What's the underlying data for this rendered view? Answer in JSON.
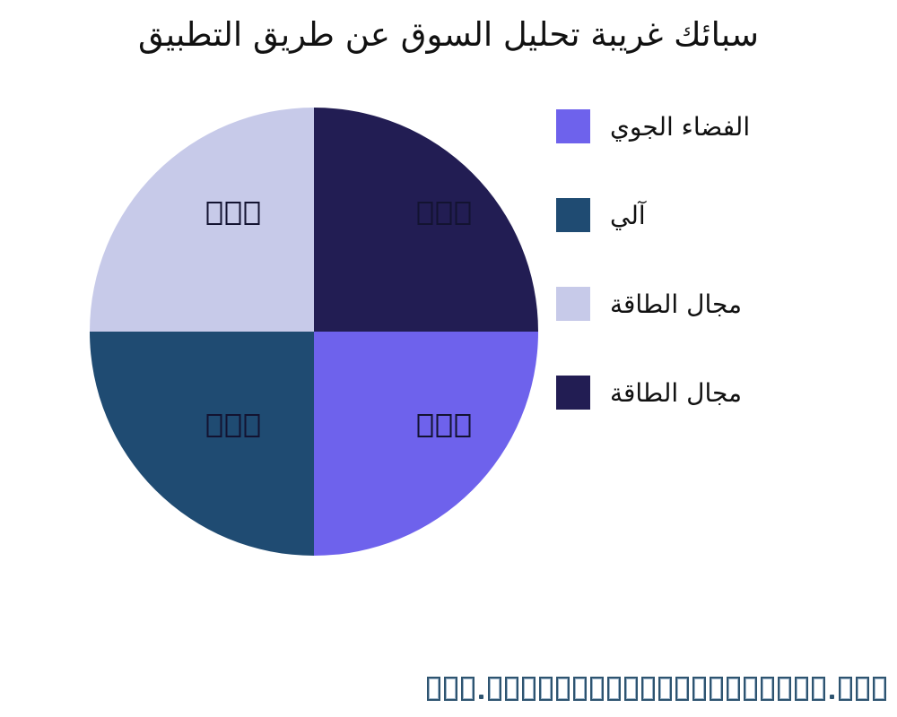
{
  "title": "سبائك غريبة تحليل السوق عن طريق التطبيق",
  "legend": {
    "items": [
      {
        "label": "الفضاء الجوي",
        "color": "#6E62EC"
      },
      {
        "label": "آلي",
        "color": "#1F4B72"
      },
      {
        "label": "مجال الطاقة",
        "color": "#C7CAE9"
      },
      {
        "label": "مجال الطاقة",
        "color": "#221D53"
      }
    ]
  },
  "chart_data": {
    "type": "pie",
    "title": "سبائك غريبة تحليل السوق عن طريق التطبيق",
    "legend_position": "right",
    "start_angle_deg": 0,
    "direction": "clockwise",
    "segments": [
      {
        "name": "مجال الطاقة",
        "value": 25,
        "color": "#221D53",
        "slice_label": "□□□",
        "position": "top-right"
      },
      {
        "name": "الفضاء الجوي",
        "value": 25,
        "color": "#6E62EC",
        "slice_label": "□□□",
        "position": "bottom-right"
      },
      {
        "name": "آلي",
        "value": 25,
        "color": "#1F4B72",
        "slice_label": "□□□",
        "position": "bottom-left"
      },
      {
        "name": "مجال الطاقة",
        "value": 25,
        "color": "#C7CAE9",
        "slice_label": "□□□",
        "position": "top-left"
      }
    ]
  },
  "watermark": {
    "text": "□□□.□□□□□□□□□□□□□□□□□□□□.□□□",
    "color": "#2E5470"
  }
}
